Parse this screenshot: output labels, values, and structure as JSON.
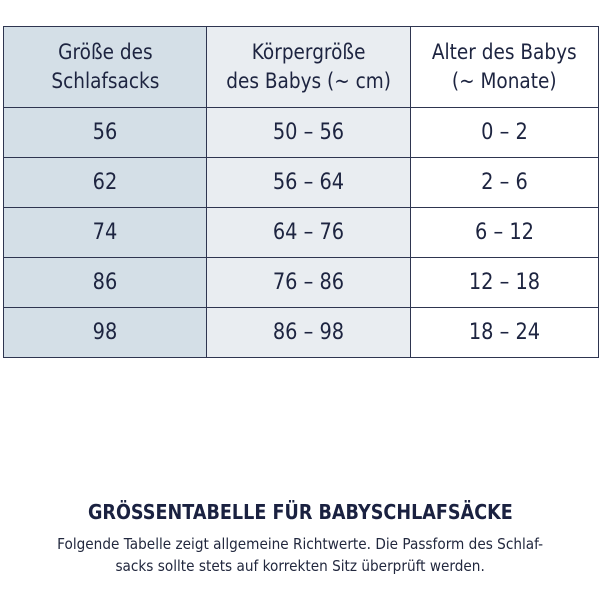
{
  "table": {
    "headers": [
      [
        "Größe des",
        "Schlafsacks"
      ],
      [
        "Körpergröße",
        "des Babys (~ cm)"
      ],
      [
        "Alter des Babys",
        "(~ Monate)"
      ]
    ],
    "rows": [
      [
        "56",
        "50 – 56",
        "0 – 2"
      ],
      [
        "62",
        "56 – 64",
        "2 – 6"
      ],
      [
        "74",
        "64 – 76",
        "6 – 12"
      ],
      [
        "86",
        "76 – 86",
        "12 – 18"
      ],
      [
        "98",
        "86 – 98",
        "18 – 24"
      ]
    ]
  },
  "caption": {
    "title": "GRÖSSENTABELLE FÜR BABYSCHLAFSÄCKE",
    "line1": "Folgende Tabelle zeigt allgemeine Richtwerte. Die Passform des Schlaf-",
    "line2": "sacks sollte stets auf korrekten Sitz überprüft werden."
  },
  "colors": {
    "col1": "#d4dfe7",
    "col2": "#e9edf1",
    "col3": "#ffffff",
    "border": "#2e3550",
    "text": "#1d2440"
  }
}
